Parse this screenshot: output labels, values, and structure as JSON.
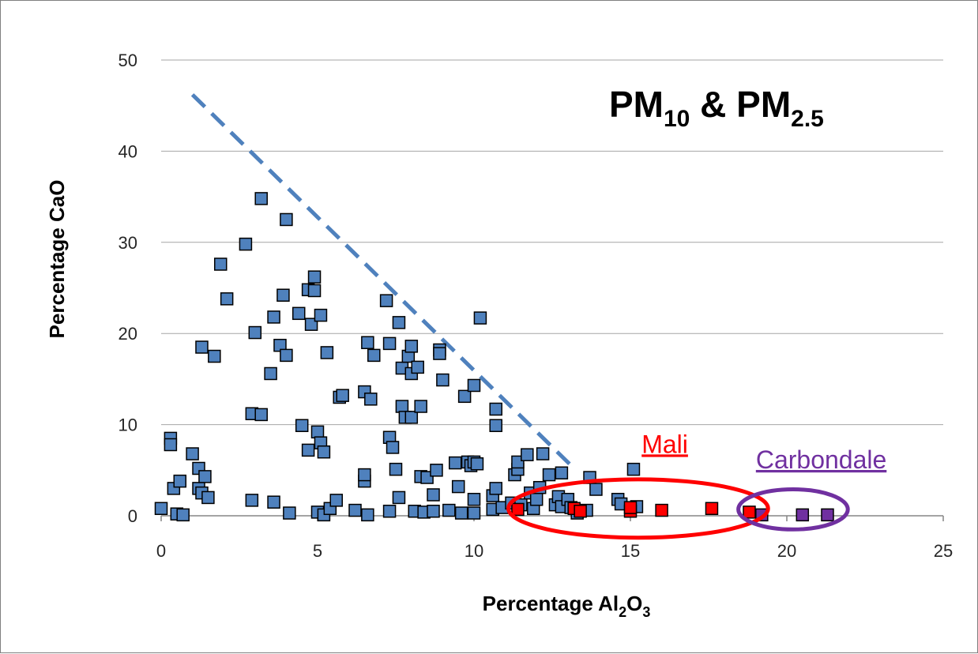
{
  "chart_data": {
    "type": "scatter",
    "title_main": "PM",
    "title_sub1": "10",
    "title_amp": " & PM",
    "title_sub2": "2.5",
    "xlabel_main": "Percentage Al",
    "xlabel_sub1": "2",
    "xlabel_mid": "O",
    "xlabel_sub2": "3",
    "ylabel": "Percentage CaO",
    "xlim": [
      0,
      25
    ],
    "ylim": [
      0,
      50
    ],
    "xticks": [
      "0",
      "5",
      "10",
      "15",
      "20",
      "25"
    ],
    "yticks": [
      "0",
      "10",
      "20",
      "30",
      "40",
      "50"
    ],
    "grid": "horizontal",
    "colors": {
      "blue": "#4f81bd",
      "red": "#ff0000",
      "purple": "#7030a0",
      "dash": "#4f81bd",
      "mali": "#ff0000",
      "carbondale": "#7030a0"
    },
    "series": [
      {
        "color": "blue",
        "points": [
          [
            0,
            0.8
          ],
          [
            0.3,
            8.5
          ],
          [
            0.3,
            7.8
          ],
          [
            0.4,
            3.0
          ],
          [
            0.5,
            0.2
          ],
          [
            0.6,
            3.8
          ],
          [
            0.7,
            0.1
          ],
          [
            1.0,
            6.8
          ],
          [
            1.2,
            5.2
          ],
          [
            1.2,
            3.0
          ],
          [
            1.3,
            18.5
          ],
          [
            1.3,
            2.5
          ],
          [
            1.4,
            4.3
          ],
          [
            1.5,
            2.0
          ],
          [
            1.7,
            17.5
          ],
          [
            1.9,
            27.6
          ],
          [
            2.1,
            23.8
          ],
          [
            2.7,
            29.8
          ],
          [
            2.9,
            1.7
          ],
          [
            2.9,
            11.2
          ],
          [
            3.0,
            20.1
          ],
          [
            3.2,
            11.1
          ],
          [
            3.2,
            34.8
          ],
          [
            3.5,
            15.6
          ],
          [
            3.6,
            21.8
          ],
          [
            3.6,
            1.5
          ],
          [
            3.8,
            18.7
          ],
          [
            3.9,
            24.2
          ],
          [
            4.0,
            32.5
          ],
          [
            4.0,
            17.6
          ],
          [
            4.1,
            0.3
          ],
          [
            4.4,
            22.2
          ],
          [
            4.5,
            9.9
          ],
          [
            4.7,
            7.2
          ],
          [
            4.7,
            24.8
          ],
          [
            4.8,
            21.0
          ],
          [
            4.9,
            26.2
          ],
          [
            4.9,
            24.7
          ],
          [
            5.0,
            9.2
          ],
          [
            5.0,
            0.4
          ],
          [
            5.1,
            22.0
          ],
          [
            5.1,
            8.0
          ],
          [
            5.2,
            7.0
          ],
          [
            5.2,
            0.1
          ],
          [
            5.3,
            17.9
          ],
          [
            5.4,
            0.8
          ],
          [
            5.6,
            1.7
          ],
          [
            5.7,
            13.0
          ],
          [
            5.8,
            13.2
          ],
          [
            6.2,
            0.6
          ],
          [
            6.5,
            3.8
          ],
          [
            6.5,
            4.5
          ],
          [
            6.5,
            13.6
          ],
          [
            6.6,
            19.0
          ],
          [
            6.6,
            0.1
          ],
          [
            6.7,
            12.8
          ],
          [
            6.8,
            17.6
          ],
          [
            7.2,
            23.6
          ],
          [
            7.3,
            0.5
          ],
          [
            7.3,
            18.9
          ],
          [
            7.3,
            8.6
          ],
          [
            7.4,
            7.5
          ],
          [
            7.5,
            5.1
          ],
          [
            7.6,
            21.2
          ],
          [
            7.6,
            2.0
          ],
          [
            7.7,
            16.2
          ],
          [
            7.7,
            12.0
          ],
          [
            7.8,
            10.8
          ],
          [
            7.9,
            17.5
          ],
          [
            8.0,
            18.6
          ],
          [
            8.0,
            15.6
          ],
          [
            8.0,
            10.8
          ],
          [
            8.1,
            0.5
          ],
          [
            8.2,
            16.3
          ],
          [
            8.3,
            12.0
          ],
          [
            8.3,
            4.3
          ],
          [
            8.4,
            0.4
          ],
          [
            8.5,
            4.2
          ],
          [
            8.7,
            0.5
          ],
          [
            8.7,
            2.3
          ],
          [
            8.8,
            5.0
          ],
          [
            8.9,
            18.2
          ],
          [
            8.9,
            17.8
          ],
          [
            9.0,
            14.9
          ],
          [
            9.2,
            0.6
          ],
          [
            9.4,
            5.8
          ],
          [
            9.5,
            3.2
          ],
          [
            9.6,
            0.3
          ],
          [
            9.7,
            13.1
          ],
          [
            9.8,
            5.9
          ],
          [
            9.9,
            5.5
          ],
          [
            10.0,
            1.8
          ],
          [
            10.0,
            0.3
          ],
          [
            10.0,
            5.9
          ],
          [
            10.0,
            14.3
          ],
          [
            10.1,
            5.7
          ],
          [
            10.2,
            21.7
          ],
          [
            10.6,
            0.7
          ],
          [
            10.6,
            2.2
          ],
          [
            10.7,
            3.0
          ],
          [
            10.7,
            9.9
          ],
          [
            10.7,
            11.7
          ],
          [
            10.9,
            0.9
          ],
          [
            11.2,
            1.4
          ],
          [
            11.3,
            4.5
          ],
          [
            11.4,
            5.1
          ],
          [
            11.4,
            5.9
          ],
          [
            11.5,
            1.2
          ],
          [
            11.7,
            6.7
          ],
          [
            11.8,
            2.5
          ],
          [
            11.9,
            0.8
          ],
          [
            12.0,
            1.8
          ],
          [
            12.1,
            3.1
          ],
          [
            12.2,
            6.8
          ],
          [
            12.4,
            4.5
          ],
          [
            12.6,
            1.2
          ],
          [
            12.7,
            2.1
          ],
          [
            12.8,
            1.0
          ],
          [
            12.8,
            4.7
          ],
          [
            13.0,
            1.8
          ],
          [
            13.1,
            0.9
          ],
          [
            13.3,
            0.3
          ],
          [
            13.6,
            0.6
          ],
          [
            13.7,
            4.2
          ],
          [
            13.9,
            2.9
          ],
          [
            14.6,
            1.8
          ],
          [
            14.7,
            1.3
          ],
          [
            15.1,
            5.1
          ],
          [
            15.2,
            1.0
          ]
        ]
      },
      {
        "color": "red",
        "points": [
          [
            11.4,
            0.7
          ],
          [
            13.2,
            0.8
          ],
          [
            13.4,
            0.5
          ],
          [
            15.0,
            0.5
          ],
          [
            15.0,
            0.9
          ],
          [
            16.0,
            0.6
          ],
          [
            17.6,
            0.8
          ],
          [
            18.8,
            0.4
          ]
        ]
      },
      {
        "color": "purple",
        "points": [
          [
            19.2,
            0.1
          ],
          [
            20.5,
            0.1
          ],
          [
            21.3,
            0.1
          ]
        ]
      }
    ],
    "trend_line": {
      "style": "dashed",
      "color": "dash",
      "from": [
        1.0,
        46.2
      ],
      "to": [
        13.2,
        5.2
      ]
    },
    "annotations": [
      {
        "label": "Mali",
        "color": "mali",
        "ellipse_center": [
          15.25,
          0.8
        ],
        "ellipse_rx": 4.15,
        "ellipse_ry": 3.2,
        "text_at": [
          16.1,
          6.9
        ]
      },
      {
        "label": "Carbondale",
        "color": "carbondale",
        "ellipse_center": [
          20.2,
          0.7
        ],
        "ellipse_rx": 1.75,
        "ellipse_ry": 2.2,
        "text_at": [
          21.1,
          5.2
        ]
      }
    ]
  }
}
